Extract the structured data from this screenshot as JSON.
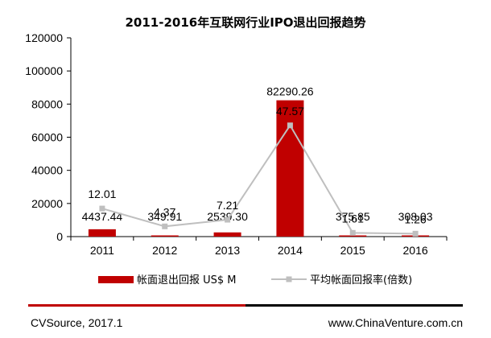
{
  "chart_data": {
    "type": "bar",
    "title": "2011-2016年互联网行业IPO退出回报趋势",
    "categories": [
      "2011",
      "2012",
      "2013",
      "2014",
      "2015",
      "2016"
    ],
    "ylim": [
      0,
      120000
    ],
    "y_ticks": [
      "0",
      "20000",
      "40000",
      "60000",
      "80000",
      "100000",
      "120000"
    ],
    "grid": false,
    "legend_position": "bottom",
    "series": [
      {
        "name": "帐面退出回报 US$ M",
        "type": "bar",
        "color": "#c00000",
        "values": [
          4437.44,
          349.91,
          2539.3,
          82290.26,
          375.85,
          308.03
        ],
        "labels": [
          "4437.44",
          "349.91",
          "2539.30",
          "82290.26",
          "375.85",
          "308.03"
        ]
      },
      {
        "name": "平均帐面回报率(倍数)",
        "type": "line",
        "color": "#bfbfbf",
        "values": [
          12.01,
          4.37,
          7.21,
          47.57,
          1.61,
          1.26
        ],
        "labels": [
          "12.01",
          "4.37",
          "7.21",
          "47.57",
          "1.61",
          "1.26"
        ]
      }
    ]
  },
  "footer": {
    "source": "CVSource, 2017.1",
    "website": "www.ChinaVenture.com.cn",
    "line_colors": [
      "#c00000",
      "#000000"
    ]
  }
}
